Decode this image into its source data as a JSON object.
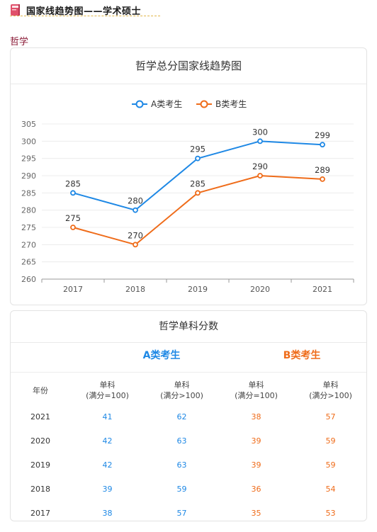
{
  "header": {
    "title": "国家线趋势图——学术硕士",
    "icon": "book-icon"
  },
  "section_label": "哲学",
  "chart_data": {
    "type": "line",
    "title": "哲学总分国家线趋势图",
    "categories": [
      "2017",
      "2018",
      "2019",
      "2020",
      "2021"
    ],
    "series": [
      {
        "name": "A类考生",
        "color": "#1e88e5",
        "values": [
          285,
          280,
          295,
          300,
          299
        ]
      },
      {
        "name": "B类考生",
        "color": "#ef6c1a",
        "values": [
          275,
          270,
          285,
          290,
          289
        ]
      }
    ],
    "ylim": [
      260,
      305
    ],
    "yticks": [
      260,
      265,
      270,
      275,
      280,
      285,
      290,
      295,
      300,
      305
    ],
    "legend_position": "top-center",
    "grid": true
  },
  "table": {
    "title": "哲学单科分数",
    "group_a": "A类考生",
    "group_b": "B类考生",
    "headers": {
      "year": "年份",
      "a1": [
        "单科",
        "(满分=100)"
      ],
      "a2": [
        "单科",
        "(满分>100)"
      ],
      "b1": [
        "单科",
        "(满分=100)"
      ],
      "b2": [
        "单科",
        "(满分>100)"
      ]
    },
    "rows": [
      {
        "year": "2021",
        "a1": "41",
        "a2": "62",
        "b1": "38",
        "b2": "57"
      },
      {
        "year": "2020",
        "a1": "42",
        "a2": "63",
        "b1": "39",
        "b2": "59"
      },
      {
        "year": "2019",
        "a1": "42",
        "a2": "63",
        "b1": "39",
        "b2": "59"
      },
      {
        "year": "2018",
        "a1": "39",
        "a2": "59",
        "b1": "36",
        "b2": "54"
      },
      {
        "year": "2017",
        "a1": "38",
        "a2": "57",
        "b1": "35",
        "b2": "53"
      }
    ]
  },
  "colors": {
    "group_a": "#1e88e5",
    "group_b": "#ef6c1a",
    "section_label": "#8a1a36"
  }
}
